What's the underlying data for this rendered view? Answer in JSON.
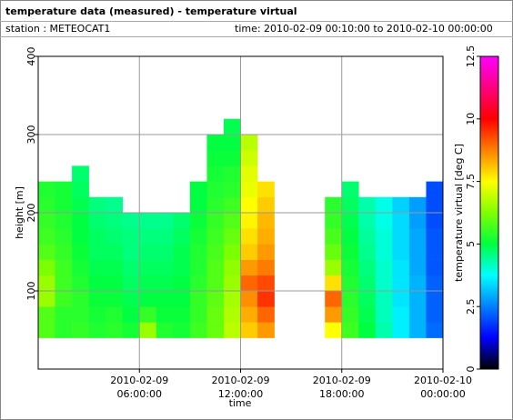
{
  "chart_data": {
    "type": "heatmap",
    "title": "temperature data (measured) - temperature virtual",
    "station": "station : METEOCAT1",
    "period": "time: 2010-02-09 00:10:00 to 2010-02-10 00:00:00",
    "xlabel": "time",
    "ylabel": "height [m]",
    "colorbar_label": "temperature virtual [deg C]",
    "x_edges": [
      "2010-02-09T00:00",
      "2010-02-09T01:00",
      "2010-02-09T02:00",
      "2010-02-09T03:00",
      "2010-02-09T04:00",
      "2010-02-09T05:00",
      "2010-02-09T06:00",
      "2010-02-09T07:00",
      "2010-02-09T08:00",
      "2010-02-09T09:00",
      "2010-02-09T10:00",
      "2010-02-09T11:00",
      "2010-02-09T12:00",
      "2010-02-09T13:00",
      "2010-02-09T14:00",
      "2010-02-09T15:00",
      "2010-02-09T16:00",
      "2010-02-09T17:00",
      "2010-02-09T18:00",
      "2010-02-09T19:00",
      "2010-02-09T20:00",
      "2010-02-09T21:00",
      "2010-02-09T22:00",
      "2010-02-09T23:00",
      "2010-02-10T00:00"
    ],
    "y_edges": [
      40,
      60,
      80,
      100,
      120,
      140,
      160,
      180,
      200,
      220,
      240,
      260,
      280,
      300,
      320,
      340
    ],
    "values": [
      [
        5.8,
        5.8,
        6.5,
        6.5,
        6.2,
        5.8,
        5.6,
        5.5,
        5.4,
        5.3
      ],
      [
        5.4,
        5.4,
        5.6,
        5.6,
        5.6,
        5.5,
        5.4,
        5.3,
        5.2,
        5.2
      ],
      [
        5.5,
        5.4,
        5.4,
        5.3,
        5.2,
        5.1,
        5,
        5,
        4.9,
        4.8,
        4.7
      ],
      [
        5.3,
        5.2,
        5.1,
        5,
        4.9,
        4.8,
        4.8,
        4.7,
        4.6
      ],
      [
        5.4,
        5.3,
        5.1,
        5,
        4.9,
        4.8,
        4.7,
        4.6,
        4.5
      ],
      [
        5.2,
        5,
        4.9,
        4.8,
        4.7,
        4.6,
        4.6,
        4.5
      ],
      [
        6.5,
        5.5,
        5,
        4.9,
        4.8,
        4.7,
        4.6,
        4.5
      ],
      [
        5.3,
        5.1,
        5,
        4.9,
        4.8,
        4.7,
        4.6,
        4.5
      ],
      [
        5.2,
        5.1,
        5,
        5,
        4.9,
        4.9,
        4.8,
        4.7
      ],
      [
        5.6,
        5.5,
        5.5,
        5.4,
        5.3,
        5.3,
        5.2,
        5.1,
        5,
        5
      ],
      [
        6,
        6,
        5.9,
        5.8,
        5.8,
        5.7,
        5.6,
        5.5,
        5.4,
        5.3,
        5.2,
        5.1,
        5
      ],
      [
        6.8,
        6.7,
        6.6,
        6.5,
        6.4,
        6.2,
        6,
        5.8,
        5.6,
        5.4,
        5.3,
        5.1,
        5,
        4.9
      ],
      [
        8,
        8.3,
        8.6,
        9,
        8.5,
        8,
        7.8,
        7.6,
        7.5,
        7.3,
        7.2,
        7,
        6.8
      ],
      [
        8.5,
        9,
        9.5,
        9.3,
        8.8,
        8.5,
        8.3,
        8.2,
        8,
        7.8
      ],
      null,
      null,
      null,
      [
        7.5,
        8.5,
        9,
        7.8,
        6.5,
        6,
        5.7,
        5.5,
        5.4
      ],
      [
        5.6,
        5.5,
        5.4,
        5.3,
        5.2,
        5.1,
        5,
        4.9,
        4.8,
        4.7
      ],
      [
        5,
        4.9,
        4.8,
        4.7,
        4.6,
        4.5,
        4.4,
        4.3,
        4.3
      ],
      [
        4.3,
        4.2,
        4.2,
        4.1,
        4.1,
        4,
        4,
        3.9,
        3.9
      ],
      [
        3.6,
        3.6,
        3.5,
        3.5,
        3.5,
        3.4,
        3.4,
        3.4,
        3.3
      ],
      [
        3,
        3,
        3,
        3,
        2.9,
        2.9,
        2.9,
        2.8,
        2.8
      ],
      [
        2.3,
        2.2,
        2.2,
        2.2,
        2.1,
        2.1,
        2.1,
        2,
        2,
        2
      ]
    ],
    "xlim": [
      "2010-02-09T00:00",
      "2010-02-10T00:00"
    ],
    "xticks": [
      {
        "value": "2010-02-09T06:00",
        "label": [
          "2010-02-09",
          "06:00:00"
        ]
      },
      {
        "value": "2010-02-09T12:00",
        "label": [
          "2010-02-09",
          "12:00:00"
        ]
      },
      {
        "value": "2010-02-09T18:00",
        "label": [
          "2010-02-09",
          "18:00:00"
        ]
      },
      {
        "value": "2010-02-10T00:00",
        "label": [
          "2010-02-10",
          "00:00:00"
        ]
      }
    ],
    "ylim": [
      0,
      400
    ],
    "yticks": [
      100,
      200,
      300,
      400
    ],
    "zlim": [
      0,
      12.5
    ],
    "zticks": [
      0,
      2.5,
      5,
      7.5,
      10,
      12.5
    ],
    "colorscale": [
      "#000000",
      "#0000ff",
      "#0080ff",
      "#00ffff",
      "#00ff40",
      "#80ff00",
      "#ffff00",
      "#ff8000",
      "#ff0000",
      "#ff0080",
      "#ff00ff"
    ],
    "grid": true
  }
}
